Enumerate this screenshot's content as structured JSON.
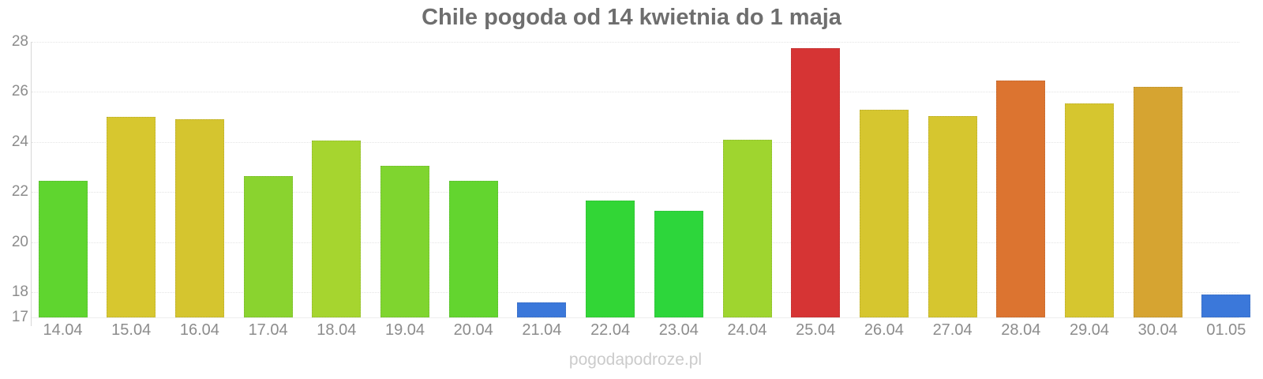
{
  "watermark": "pogodapodroze.pl",
  "chart_data": {
    "type": "bar",
    "title": "Chile pogoda od 14 kwietnia do 1 maja",
    "categories": [
      "14.04",
      "15.04",
      "16.04",
      "17.04",
      "18.04",
      "19.04",
      "20.04",
      "21.04",
      "22.04",
      "23.04",
      "24.04",
      "25.04",
      "26.04",
      "27.04",
      "28.04",
      "29.04",
      "30.04",
      "01.05"
    ],
    "values": [
      22.45,
      25.0,
      24.9,
      22.65,
      24.05,
      23.05,
      22.45,
      17.6,
      21.65,
      21.25,
      24.1,
      27.75,
      25.3,
      25.05,
      26.45,
      25.55,
      26.2,
      17.9
    ],
    "bar_colors": [
      "#5fd52f",
      "#d7c72f",
      "#d5c52f",
      "#8ad32f",
      "#a6d52f",
      "#7fd52f",
      "#63d52f",
      "#3b78da",
      "#32d636",
      "#2dd63b",
      "#9fd52f",
      "#d63434",
      "#d6c62f",
      "#d6c62f",
      "#dc7430",
      "#d6c62f",
      "#d6a431",
      "#3b78da"
    ],
    "xlabel": "",
    "ylabel": "",
    "ylim": [
      17,
      28
    ],
    "yticks": [
      28,
      26,
      24,
      22,
      20,
      18,
      17
    ],
    "grid": true,
    "legend": false
  }
}
